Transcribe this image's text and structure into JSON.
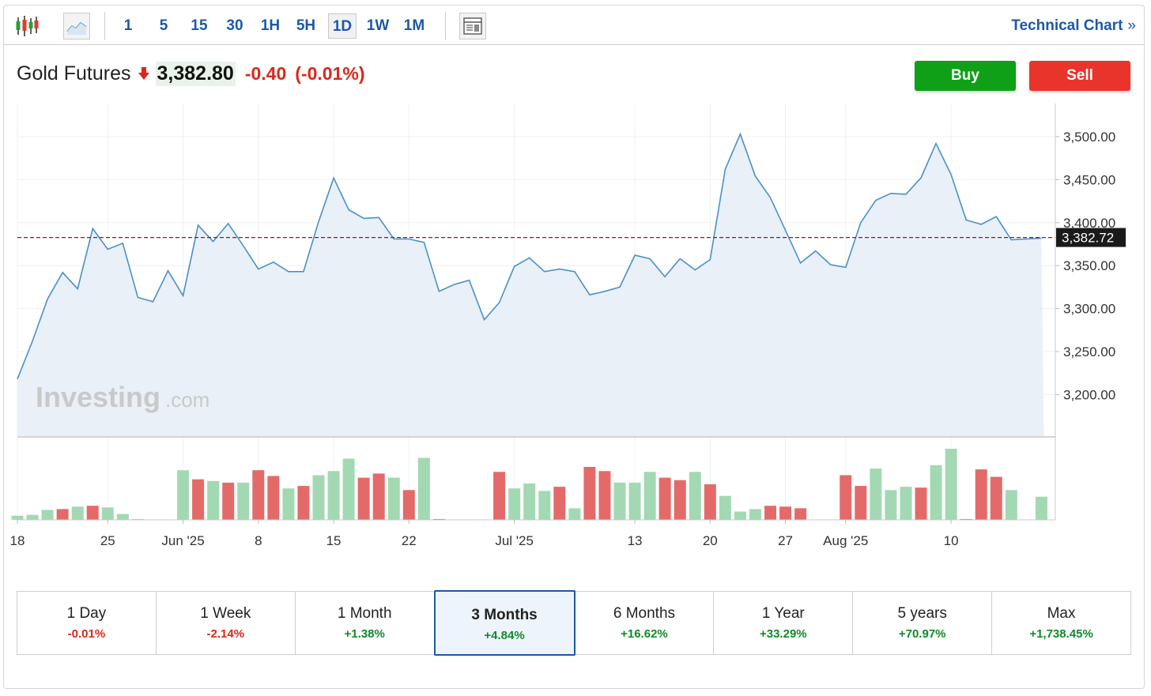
{
  "toolbar": {
    "icons": [
      "candlestick-icon",
      "line-chart-icon",
      "layout-icon"
    ],
    "timeframes": [
      "1",
      "5",
      "15",
      "30",
      "1H",
      "5H",
      "1D",
      "1W",
      "1M"
    ],
    "active_timeframe": "1D",
    "technical_link": "Technical Chart",
    "technical_chevron": "»"
  },
  "quote": {
    "name": "Gold Futures",
    "price": "3,382.80",
    "change": "-0.40",
    "change_pct": "(-0.01%)",
    "direction": "down"
  },
  "actions": {
    "buy": "Buy",
    "sell": "Sell"
  },
  "watermark": {
    "brand": "Investing",
    "suffix": ".com"
  },
  "colors": {
    "line": "#4a90c9",
    "area": "#e9f0f8",
    "volume_up": "#a3d9b2",
    "volume_down": "#e46a6a",
    "last_price_line": "#8a1c1c",
    "up_text": "#0f8a2b",
    "down_text": "#d9281c",
    "accent": "#1d58a8"
  },
  "chart_data": {
    "type": "line",
    "y_ticks": [
      "3,200.00",
      "3,250.00",
      "3,300.00",
      "3,350.00",
      "3,400.00",
      "3,450.00",
      "3,500.00"
    ],
    "ylim": [
      3150,
      3525
    ],
    "last_price_label": "3,382.72",
    "last_price": 3382.72,
    "x_labels": [
      {
        "i": 0,
        "label": "18"
      },
      {
        "i": 6,
        "label": "25"
      },
      {
        "i": 11,
        "label": "Jun '25"
      },
      {
        "i": 16,
        "label": "8"
      },
      {
        "i": 21,
        "label": "15"
      },
      {
        "i": 26,
        "label": "22"
      },
      {
        "i": 33,
        "label": "Jul '25"
      },
      {
        "i": 41,
        "label": "13"
      },
      {
        "i": 46,
        "label": "20"
      },
      {
        "i": 51,
        "label": "27"
      },
      {
        "i": 55,
        "label": "Aug '25"
      },
      {
        "i": 62,
        "label": "10"
      }
    ],
    "price": [
      3218,
      3262,
      3311,
      3342,
      3323,
      3393,
      3369,
      3376,
      3313,
      3308,
      3344,
      3315,
      3397,
      3378,
      3399,
      3373,
      3346,
      3354,
      3343,
      3343,
      3401,
      3452,
      3415,
      3405,
      3406,
      3381,
      3381,
      3377,
      3320,
      3328,
      3333,
      3287,
      3307,
      3349,
      3359,
      3343,
      3346,
      3343,
      3316,
      3320,
      3325,
      3362,
      3358,
      3337,
      3358,
      3345,
      3357,
      3462,
      3503,
      3454,
      3429,
      3391,
      3353,
      3367,
      3351,
      3348,
      3400,
      3426,
      3434,
      3433,
      3452,
      3492,
      3456,
      3403,
      3398,
      3407,
      3380,
      3381,
      3382
    ],
    "volume": [
      5,
      6,
      12,
      13,
      16,
      17,
      15,
      7,
      1,
      null,
      null,
      60,
      49,
      47,
      45,
      45,
      60,
      53,
      38,
      41,
      54,
      59,
      74,
      51,
      56,
      51,
      36,
      75,
      1,
      null,
      null,
      null,
      58,
      38,
      44,
      35,
      40,
      14,
      64,
      59,
      45,
      45,
      58,
      51,
      48,
      58,
      43,
      29,
      10,
      13,
      17,
      16,
      14,
      null,
      null,
      54,
      41,
      62,
      36,
      40,
      39,
      66,
      86,
      1,
      61,
      52,
      36,
      null,
      28
    ],
    "volume_dir": [
      "u",
      "u",
      "u",
      "d",
      "u",
      "d",
      "u",
      "u",
      "u",
      "",
      "",
      "u",
      "d",
      "u",
      "d",
      "u",
      "d",
      "d",
      "u",
      "d",
      "u",
      "u",
      "u",
      "d",
      "d",
      "u",
      "d",
      "u",
      "d",
      "",
      "",
      "",
      "d",
      "u",
      "u",
      "u",
      "d",
      "u",
      "d",
      "d",
      "u",
      "u",
      "u",
      "d",
      "d",
      "u",
      "d",
      "u",
      "u",
      "u",
      "d",
      "d",
      "d",
      "",
      "",
      "d",
      "d",
      "u",
      "u",
      "u",
      "d",
      "u",
      "u",
      "d",
      "d",
      "d",
      "u",
      "",
      "u"
    ]
  },
  "periods": [
    {
      "label": "1 Day",
      "value": "-0.01%",
      "dir": "down"
    },
    {
      "label": "1 Week",
      "value": "-2.14%",
      "dir": "down"
    },
    {
      "label": "1 Month",
      "value": "+1.38%",
      "dir": "up"
    },
    {
      "label": "3 Months",
      "value": "+4.84%",
      "dir": "up",
      "active": true
    },
    {
      "label": "6 Months",
      "value": "+16.62%",
      "dir": "up"
    },
    {
      "label": "1 Year",
      "value": "+33.29%",
      "dir": "up"
    },
    {
      "label": "5 years",
      "value": "+70.97%",
      "dir": "up"
    },
    {
      "label": "Max",
      "value": "+1,738.45%",
      "dir": "up"
    }
  ]
}
